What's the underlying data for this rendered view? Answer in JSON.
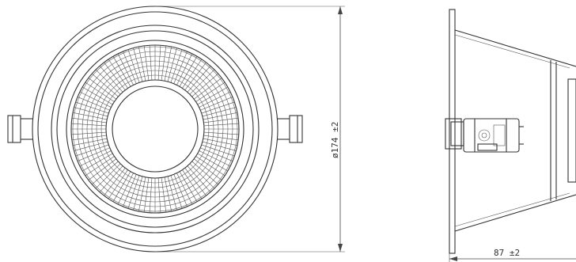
{
  "front_view": {
    "diameter_label": "ø174 ±2"
  },
  "side_view": {
    "depth_label": "87 ±2"
  }
}
